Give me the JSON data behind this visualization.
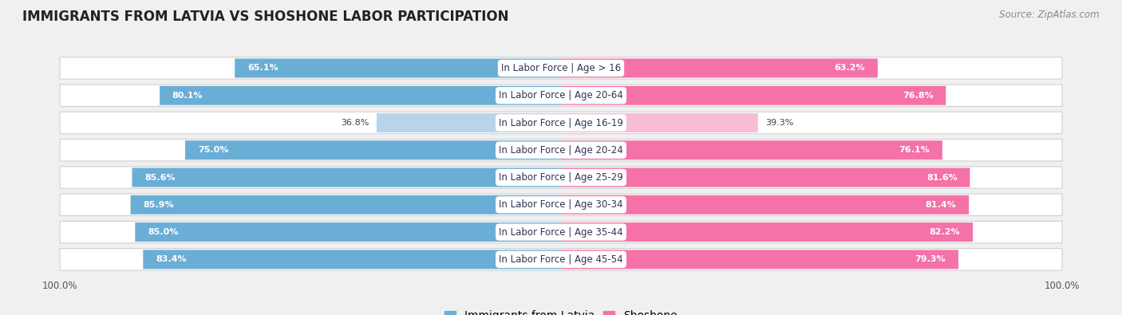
{
  "title": "IMMIGRANTS FROM LATVIA VS SHOSHONE LABOR PARTICIPATION",
  "source": "Source: ZipAtlas.com",
  "categories": [
    "In Labor Force | Age > 16",
    "In Labor Force | Age 20-64",
    "In Labor Force | Age 16-19",
    "In Labor Force | Age 20-24",
    "In Labor Force | Age 25-29",
    "In Labor Force | Age 30-34",
    "In Labor Force | Age 35-44",
    "In Labor Force | Age 45-54"
  ],
  "latvia_values": [
    65.1,
    80.1,
    36.8,
    75.0,
    85.6,
    85.9,
    85.0,
    83.4
  ],
  "shoshone_values": [
    63.2,
    76.8,
    39.3,
    76.1,
    81.6,
    81.4,
    82.2,
    79.3
  ],
  "latvia_color_strong": "#6aaed6",
  "latvia_color_weak": "#b8d4ea",
  "shoshone_color_strong": "#f472a8",
  "shoshone_color_weak": "#f8bcd4",
  "background_color": "#f0f0f0",
  "bar_bg_color": "#ffffff",
  "threshold": 50,
  "max_val": 100,
  "bar_fontsize": 8.0,
  "cat_fontsize": 8.5,
  "title_fontsize": 12,
  "legend_fontsize": 10,
  "source_fontsize": 8.5
}
